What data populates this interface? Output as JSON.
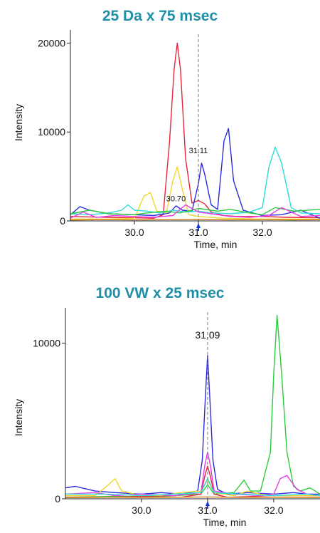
{
  "chart_data": [
    {
      "type": "line",
      "title": "25 Da x 75 msec",
      "xlabel": "Time, min",
      "ylabel": "Intensity",
      "xlim": [
        29.0,
        32.9
      ],
      "ylim": [
        0,
        21000
      ],
      "xticks": [
        30.0,
        31.0,
        32.0
      ],
      "xtick_labels": [
        "30.0",
        "31.0",
        "32.0"
      ],
      "yticks": [
        0,
        10000,
        20000
      ],
      "ytick_labels": [
        "0",
        "10000",
        "20000"
      ],
      "marker_x": 31.0,
      "annotations": [
        {
          "text": "31.11",
          "x": 31.0,
          "y": 7600
        },
        {
          "text": "30.70",
          "x": 30.65,
          "y": 2200
        }
      ],
      "series": [
        {
          "color": "#e8243c",
          "x": [
            29.0,
            29.3,
            29.6,
            30.0,
            30.3,
            30.45,
            30.55,
            30.62,
            30.67,
            30.72,
            30.8,
            30.9,
            31.0,
            31.1,
            31.2,
            31.4,
            31.6,
            32.0,
            32.4,
            32.9
          ],
          "y": [
            500,
            450,
            400,
            350,
            300,
            700,
            9000,
            17000,
            20000,
            17000,
            7000,
            2000,
            2300,
            1900,
            1000,
            600,
            500,
            500,
            400,
            350
          ]
        },
        {
          "color": "#2b2bdc",
          "x": [
            29.0,
            29.15,
            29.3,
            29.6,
            30.0,
            30.3,
            30.55,
            30.65,
            30.75,
            30.9,
            31.0,
            31.05,
            31.1,
            31.2,
            31.3,
            31.4,
            31.47,
            31.55,
            31.7,
            32.0,
            32.3,
            32.6,
            32.9
          ],
          "y": [
            700,
            1600,
            1200,
            800,
            700,
            600,
            900,
            1700,
            1200,
            1100,
            4200,
            6500,
            5200,
            1800,
            1300,
            9000,
            10400,
            4500,
            1200,
            600,
            700,
            1200,
            300
          ]
        },
        {
          "color": "#f2d72a",
          "x": [
            29.0,
            29.6,
            30.0,
            30.15,
            30.25,
            30.35,
            30.5,
            30.6,
            30.67,
            30.75,
            30.85,
            31.0,
            31.4,
            32.0,
            32.9
          ],
          "y": [
            200,
            200,
            300,
            2800,
            3200,
            1100,
            900,
            4500,
            6100,
            3500,
            700,
            500,
            300,
            200,
            200
          ]
        },
        {
          "color": "#2cdcdc",
          "x": [
            29.0,
            29.3,
            29.6,
            29.8,
            29.9,
            30.0,
            30.2,
            30.4,
            30.6,
            30.8,
            31.0,
            31.2,
            31.5,
            31.8,
            32.0,
            32.1,
            32.2,
            32.3,
            32.45,
            32.6,
            32.9
          ],
          "y": [
            800,
            700,
            900,
            1200,
            1800,
            1200,
            1100,
            900,
            1200,
            1000,
            1100,
            900,
            800,
            1000,
            1500,
            6000,
            8300,
            6500,
            1500,
            900,
            800
          ]
        },
        {
          "color": "#2bcc3c",
          "x": [
            29.0,
            29.3,
            29.6,
            30.0,
            30.2,
            30.5,
            30.7,
            30.9,
            31.0,
            31.3,
            31.5,
            31.8,
            32.0,
            32.2,
            32.5,
            32.9
          ],
          "y": [
            800,
            1200,
            800,
            700,
            900,
            1100,
            900,
            1200,
            1400,
            1100,
            1300,
            900,
            700,
            1500,
            1100,
            1300
          ]
        },
        {
          "color": "#e83ce8",
          "x": [
            29.0,
            29.2,
            29.4,
            29.7,
            30.0,
            30.3,
            30.6,
            30.8,
            31.0,
            31.2,
            31.5,
            31.8,
            32.1,
            32.3,
            32.6,
            32.9
          ],
          "y": [
            300,
            1000,
            400,
            600,
            500,
            400,
            600,
            1800,
            1000,
            800,
            500,
            400,
            600,
            1500,
            500,
            600
          ]
        },
        {
          "color": "#d08020",
          "x": [
            29.0,
            29.5,
            30.0,
            30.5,
            31.0,
            31.5,
            32.0,
            32.5,
            32.9
          ],
          "y": [
            100,
            150,
            120,
            140,
            160,
            130,
            150,
            120,
            140
          ]
        }
      ]
    },
    {
      "type": "line",
      "title": "100 VW x 25 msec",
      "xlabel": "Time, min",
      "ylabel": "Intensity",
      "xlim": [
        28.85,
        32.7
      ],
      "ylim": [
        0,
        12000
      ],
      "xticks": [
        30.0,
        31.0,
        32.0
      ],
      "xtick_labels": [
        "30.0",
        "31.0",
        "32.0"
      ],
      "yticks": [
        0,
        10000
      ],
      "ytick_labels": [
        "0",
        "10000"
      ],
      "marker_x": 31.0,
      "annotations": [
        {
          "text": "31.09",
          "x": 31.0,
          "y": 10300
        }
      ],
      "series": [
        {
          "color": "#2b2bdc",
          "x": [
            28.85,
            29.0,
            29.3,
            29.6,
            30.0,
            30.3,
            30.6,
            30.85,
            30.92,
            30.96,
            31.0,
            31.04,
            31.08,
            31.15,
            31.3,
            31.6,
            32.0,
            32.3,
            32.5,
            32.7
          ],
          "y": [
            700,
            800,
            500,
            400,
            300,
            400,
            300,
            500,
            2500,
            6000,
            9200,
            6000,
            2500,
            600,
            300,
            400,
            300,
            400,
            300,
            300
          ]
        },
        {
          "color": "#2bcc3c",
          "x": [
            28.85,
            29.5,
            30.0,
            30.5,
            30.9,
            31.0,
            31.1,
            31.4,
            31.55,
            31.65,
            31.8,
            31.95,
            32.0,
            32.05,
            32.12,
            32.2,
            32.3,
            32.4,
            32.55,
            32.7
          ],
          "y": [
            100,
            150,
            150,
            200,
            300,
            900,
            300,
            400,
            1200,
            500,
            500,
            3000,
            8000,
            11800,
            8000,
            3000,
            800,
            500,
            700,
            300
          ]
        },
        {
          "color": "#f2d72a",
          "x": [
            28.85,
            29.3,
            29.5,
            29.6,
            29.7,
            29.9,
            30.3,
            30.6,
            30.9,
            31.0,
            31.1,
            31.4,
            31.6,
            31.8,
            32.0,
            32.7
          ],
          "y": [
            200,
            200,
            900,
            1300,
            500,
            300,
            200,
            400,
            500,
            1200,
            400,
            200,
            500,
            300,
            200,
            200
          ]
        },
        {
          "color": "#e8243c",
          "x": [
            28.85,
            29.5,
            30.0,
            30.6,
            30.9,
            30.96,
            31.0,
            31.04,
            31.1,
            31.3,
            31.7,
            32.0,
            32.7
          ],
          "y": [
            100,
            100,
            150,
            100,
            300,
            1500,
            2100,
            1500,
            300,
            100,
            150,
            100,
            100
          ]
        },
        {
          "color": "#e83ce8",
          "x": [
            28.85,
            29.3,
            29.6,
            30.0,
            30.5,
            30.9,
            30.96,
            31.0,
            31.04,
            31.1,
            31.4,
            31.8,
            32.0,
            32.1,
            32.2,
            32.35,
            32.5,
            32.7
          ],
          "y": [
            300,
            400,
            200,
            300,
            200,
            400,
            2200,
            3000,
            2200,
            500,
            300,
            200,
            300,
            1300,
            1500,
            600,
            300,
            200
          ]
        },
        {
          "color": "#2cdcdc",
          "x": [
            28.85,
            29.5,
            30.0,
            30.5,
            30.9,
            31.0,
            31.1,
            31.5,
            32.0,
            32.5,
            32.7
          ],
          "y": [
            300,
            300,
            200,
            300,
            400,
            1300,
            400,
            300,
            200,
            300,
            200
          ]
        },
        {
          "color": "#d08020",
          "x": [
            28.85,
            29.5,
            30.0,
            30.5,
            31.0,
            31.5,
            32.0,
            32.7
          ],
          "y": [
            80,
            100,
            90,
            100,
            120,
            90,
            100,
            90
          ]
        }
      ]
    }
  ]
}
